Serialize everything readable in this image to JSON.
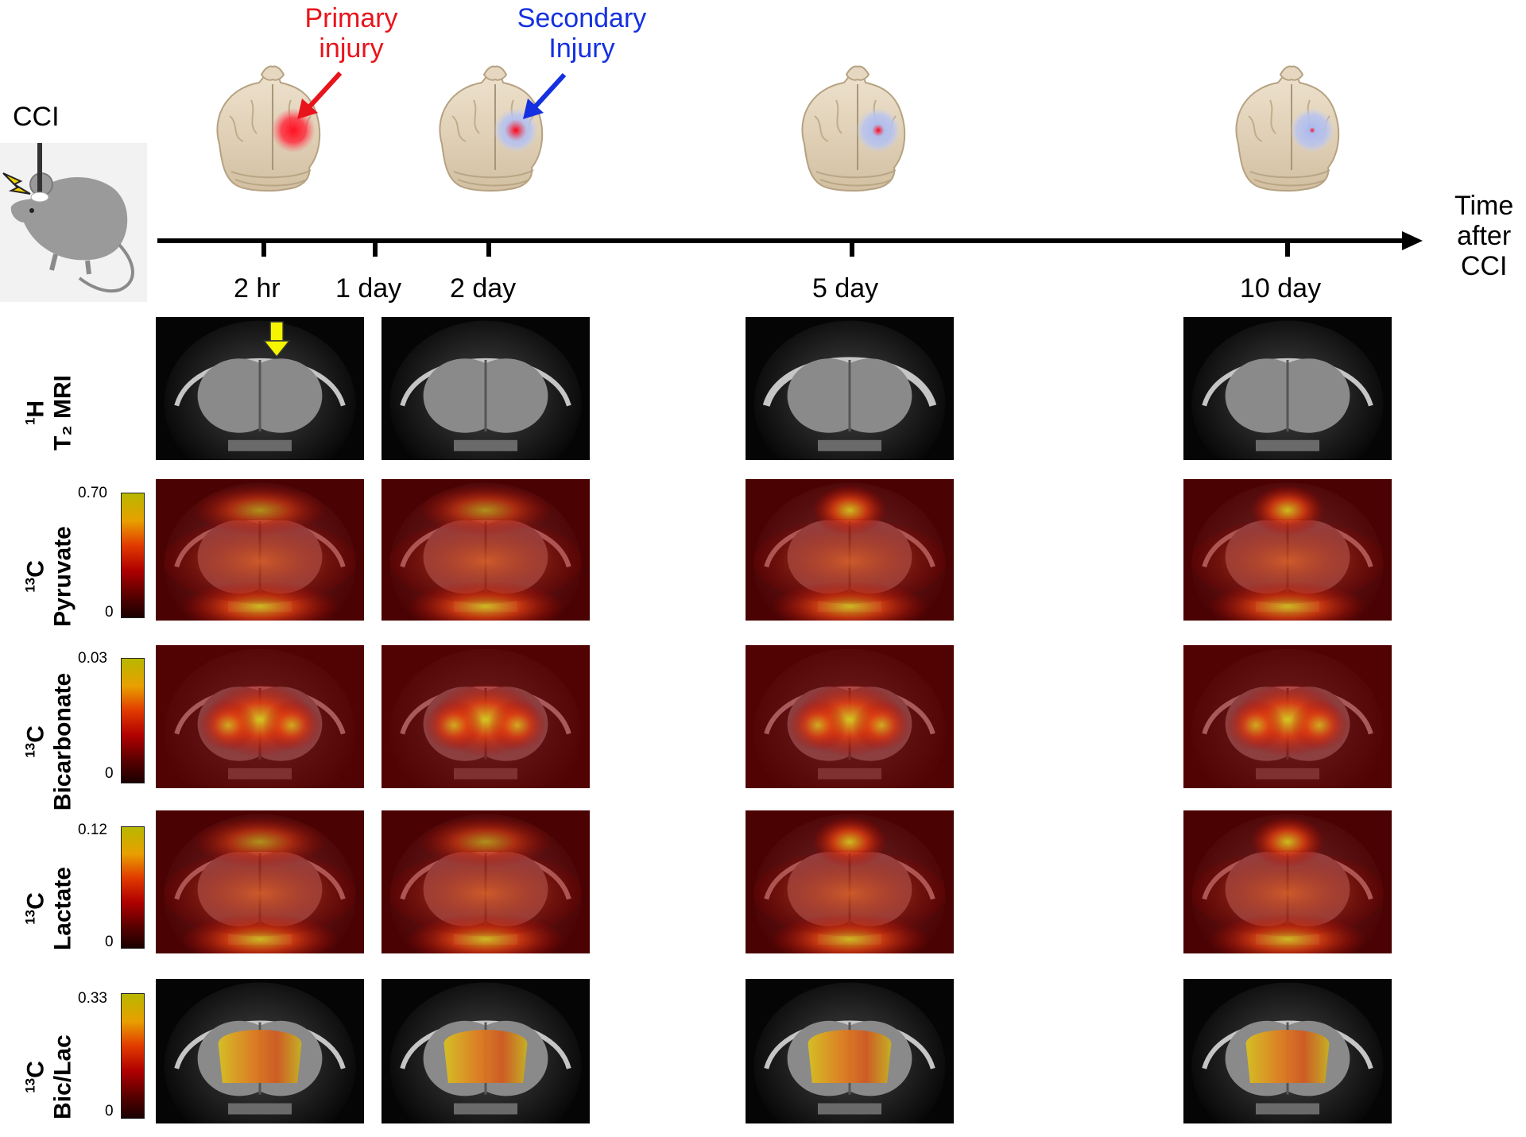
{
  "top": {
    "procedure_label": "CCI",
    "primary_label_line1": "Primary",
    "primary_label_line2": "injury",
    "secondary_label_line1": "Secondary",
    "secondary_label_line2": "Injury",
    "axis_label_line1": "Time",
    "axis_label_line2": "after",
    "axis_label_line3": "CCI",
    "colors": {
      "primary": "#e8141c",
      "secondary": "#1430e0",
      "arrow_yellow": "#f5f500"
    }
  },
  "timepoints": [
    "2 hr",
    "1 day",
    "2 day",
    "5 day",
    "10 day"
  ],
  "rows": [
    {
      "name": "1H T2 MRI",
      "iso": "1H",
      "line2": "T₂ MRI"
    },
    {
      "name": "13C Pyruvate",
      "iso": "13C",
      "line2": "Pyruvate",
      "cbar_max": "0.70",
      "cbar_min": "0"
    },
    {
      "name": "13C Bicarbonate",
      "iso": "13C",
      "line2": "Bicarbonate",
      "cbar_max": "0.03",
      "cbar_min": "0"
    },
    {
      "name": "13C Lactate",
      "iso": "13C",
      "line2": "Lactate",
      "cbar_max": "0.12",
      "cbar_min": "0"
    },
    {
      "name": "13C Bic/Lac",
      "iso": "13C",
      "line2": "Bic/Lac",
      "cbar_max": "0.33",
      "cbar_min": "0"
    }
  ],
  "icons": [
    "mouse-icon",
    "lightning-icon",
    "brain-icon",
    "arrow-icon",
    "colorbar-icon"
  ]
}
